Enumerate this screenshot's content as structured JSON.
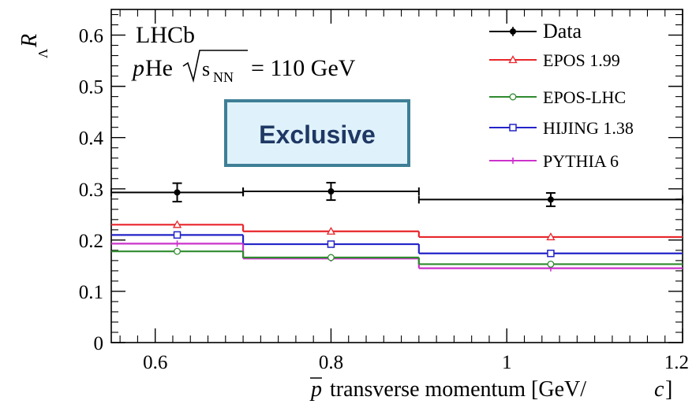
{
  "chart_data": {
    "type": "line",
    "experiment": "LHCb",
    "system_prefix": "p",
    "system_suffix": "He",
    "energy_sqrt_label": "s",
    "energy_sqrt_sub": "NN",
    "energy_value": "= 110 GeV",
    "annotation_box": "Exclusive",
    "ylabel_main": "R",
    "ylabel_sub": "Λ",
    "xlabel_symbol": "p",
    "xlabel_text": "transverse momentum [GeV/",
    "xlabel_unit_c": "c",
    "xlabel_close": "]",
    "xlim": [
      0.55,
      1.2
    ],
    "ylim": [
      0,
      0.65
    ],
    "x_ticks": [
      0.6,
      0.8,
      1.0,
      1.2
    ],
    "x_tick_labels": [
      "0.6",
      "0.8",
      "1",
      "1.2"
    ],
    "y_ticks": [
      0,
      0.1,
      0.2,
      0.3,
      0.4,
      0.5,
      0.6
    ],
    "y_tick_labels": [
      "0",
      "0.1",
      "0.2",
      "0.3",
      "0.4",
      "0.5",
      "0.6"
    ],
    "bins": [
      [
        0.55,
        0.7
      ],
      [
        0.7,
        0.9
      ],
      [
        0.9,
        1.2
      ]
    ],
    "bin_centers": [
      0.625,
      0.8,
      1.05
    ],
    "legend_position": "top-right",
    "series": [
      {
        "name": "Data",
        "color": "#000000",
        "marker": "dot",
        "values": [
          0.293,
          0.295,
          0.279
        ],
        "errors": [
          0.018,
          0.017,
          0.013
        ]
      },
      {
        "name": "EPOS 1.99",
        "color": "#e8262b",
        "marker": "triangle",
        "values": [
          0.23,
          0.217,
          0.206
        ]
      },
      {
        "name": "EPOS-LHC",
        "color": "#2e8b2e",
        "marker": "circle",
        "values": [
          0.178,
          0.166,
          0.153
        ]
      },
      {
        "name": "HIJING 1.38",
        "color": "#2323c8",
        "marker": "square",
        "values": [
          0.21,
          0.192,
          0.174
        ]
      },
      {
        "name": "PYTHIA 6",
        "color": "#cc33cc",
        "marker": "star",
        "values": [
          0.193,
          0.164,
          0.145
        ]
      }
    ]
  }
}
